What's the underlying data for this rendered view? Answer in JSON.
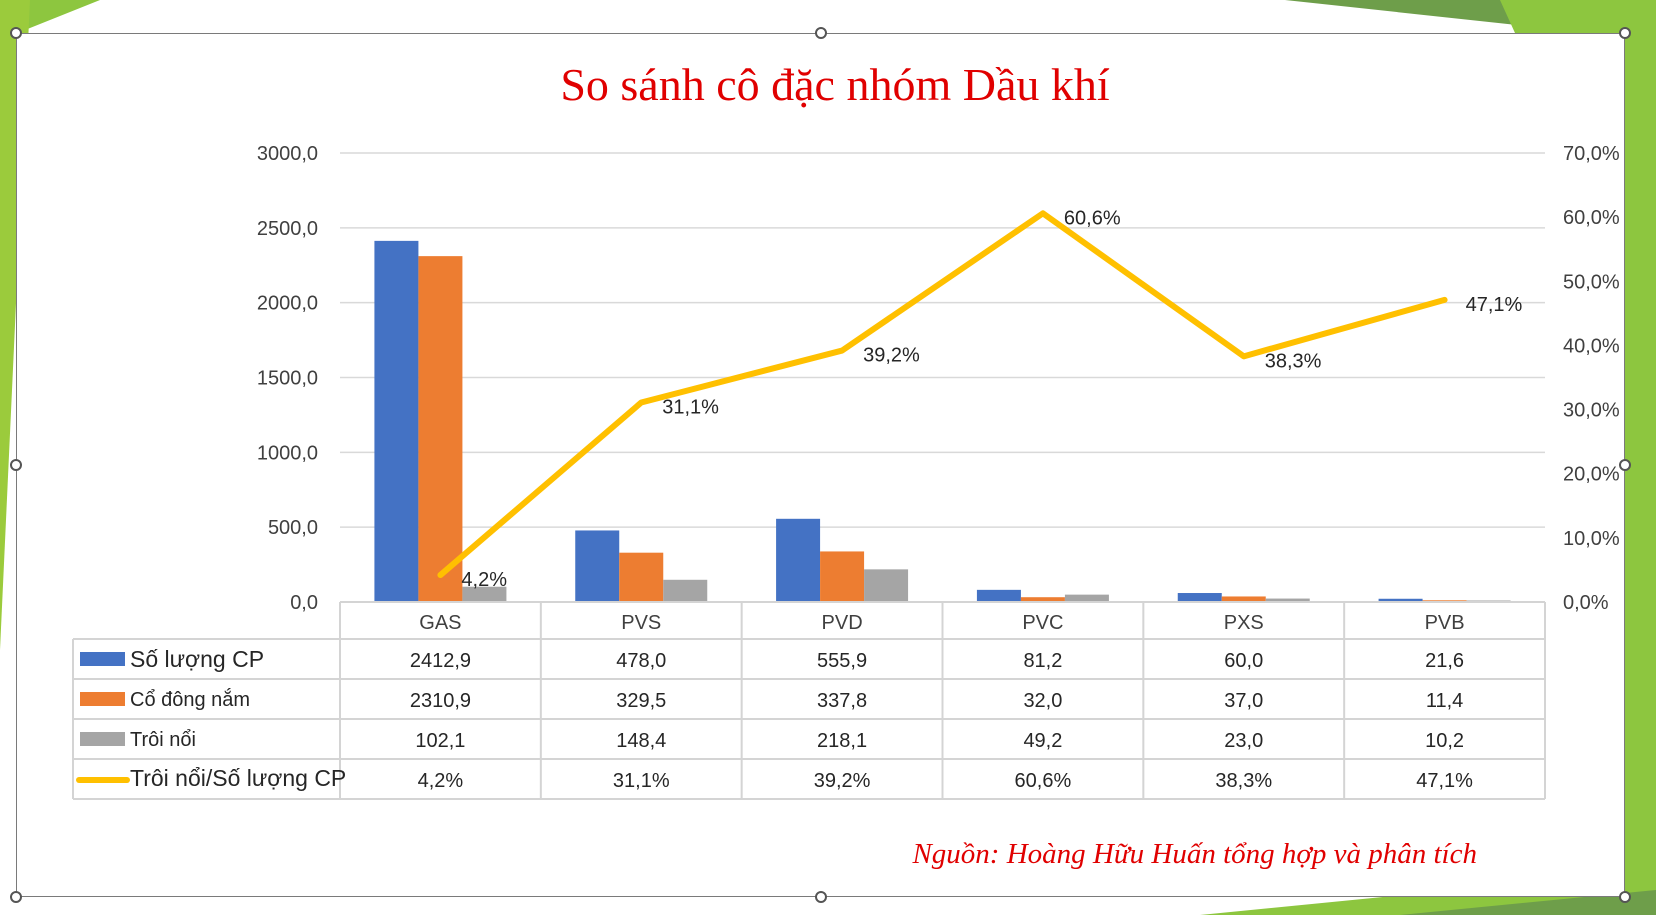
{
  "chart_data": {
    "type": "bar",
    "title": "So sánh cô đặc nhóm Dầu khí",
    "categories": [
      "GAS",
      "PVS",
      "PVD",
      "PVC",
      "PXS",
      "PVB"
    ],
    "series": [
      {
        "name": "Số lượng CP",
        "type": "bar",
        "axis": "left",
        "color": "#4472C4",
        "values": [
          2412.9,
          478.0,
          555.9,
          81.2,
          60.0,
          21.6
        ],
        "labels": [
          "2412,9",
          "478,0",
          "555,9",
          "81,2",
          "60,0",
          "21,6"
        ]
      },
      {
        "name": "Cổ đông nắm",
        "type": "bar",
        "axis": "left",
        "color": "#ED7D31",
        "values": [
          2310.9,
          329.5,
          337.8,
          32.0,
          37.0,
          11.4
        ],
        "labels": [
          "2310,9",
          "329,5",
          "337,8",
          "32,0",
          "37,0",
          "11,4"
        ]
      },
      {
        "name": "Trôi nổi",
        "type": "bar",
        "axis": "left",
        "color": "#A5A5A5",
        "values": [
          102.1,
          148.4,
          218.1,
          49.2,
          23.0,
          10.2
        ],
        "labels": [
          "102,1",
          "148,4",
          "218,1",
          "49,2",
          "23,0",
          "10,2"
        ]
      },
      {
        "name": "Trôi nổi/Số lượng CP",
        "type": "line",
        "axis": "right",
        "color": "#FFC000",
        "values": [
          4.2,
          31.1,
          39.2,
          60.6,
          38.3,
          47.1
        ],
        "labels": [
          "4,2%",
          "31,1%",
          "39,2%",
          "60,6%",
          "38,3%",
          "47,1%"
        ]
      }
    ],
    "y_left": {
      "range": [
        0,
        3000
      ],
      "ticks": [
        "0,0",
        "500,0",
        "1000,0",
        "1500,0",
        "2000,0",
        "2500,0",
        "3000,0"
      ]
    },
    "y_right": {
      "range": [
        0,
        70
      ],
      "ticks": [
        "0,0%",
        "10,0%",
        "20,0%",
        "30,0%",
        "40,0%",
        "50,0%",
        "60,0%",
        "70,0%"
      ]
    },
    "grid": true,
    "legend": "data-table",
    "source": "Nguồn: Hoàng Hữu Huấn tổng hợp và phân tích"
  },
  "colors": {
    "title": "#E00000",
    "source": "#E00000",
    "accent_green": "#8DC63F",
    "dark_green": "#6E9E4A"
  }
}
